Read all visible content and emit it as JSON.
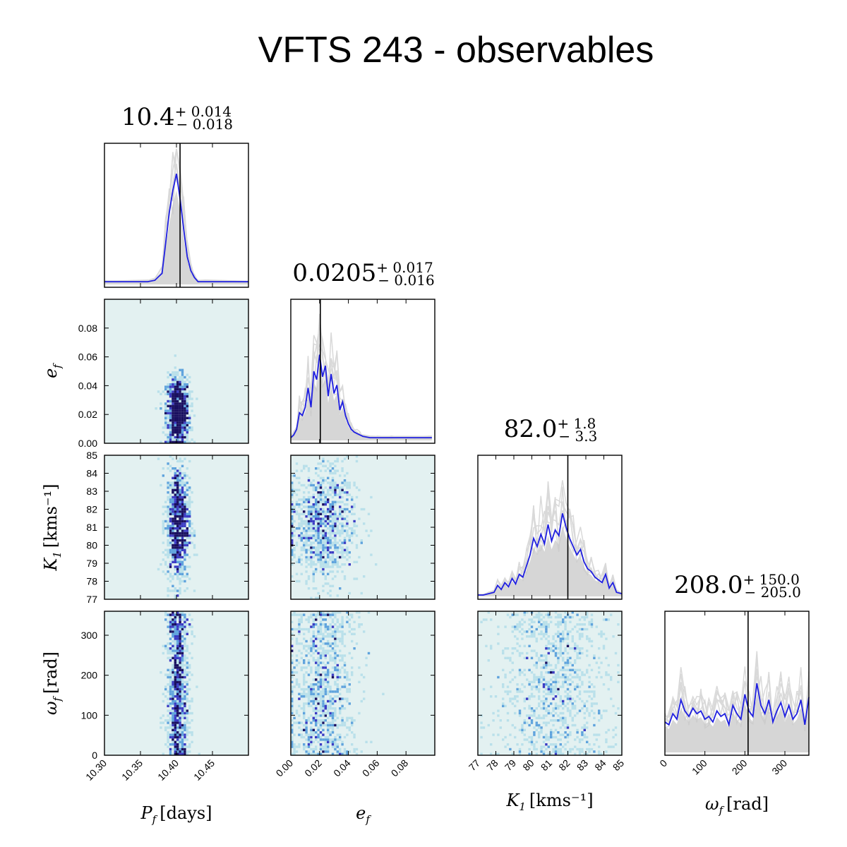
{
  "figure": {
    "title": "VFTS 243 - observables"
  },
  "colors": {
    "blue_line": "#1f1fe0",
    "grey_fill": "#c8c8c8",
    "grey_line": "#d9d9d9",
    "median_line": "#000000",
    "hist2d_bg": "#e3f1f1",
    "hist2d_low": "#b9e0ea",
    "hist2d_mid": "#5fa3dd",
    "hist2d_high": "#3b3bc4",
    "hist2d_peak": "#1a1060"
  },
  "chart_data": {
    "type": "corner",
    "parameters": [
      {
        "key": "P",
        "label_sym": "P",
        "label_sub": "f",
        "label_unit": "[days]",
        "range": [
          10.3,
          10.5
        ],
        "ticks": [
          10.3,
          10.35,
          10.4,
          10.45
        ],
        "tick_labels": [
          "10.30",
          "10.35",
          "10.40",
          "10.45"
        ],
        "median": 10.405,
        "stat": {
          "value": "10.4",
          "plus": "+ 0.014",
          "minus": "− 0.018"
        }
      },
      {
        "key": "e",
        "label_sym": "e",
        "label_sub": "f",
        "label_unit": "",
        "range": [
          0.0,
          0.1
        ],
        "ticks": [
          0.0,
          0.02,
          0.04,
          0.06,
          0.08
        ],
        "tick_labels": [
          "0.00",
          "0.02",
          "0.04",
          "0.06",
          "0.08"
        ],
        "median": 0.0205,
        "stat": {
          "value": "0.0205",
          "plus": "+ 0.017",
          "minus": "− 0.016"
        }
      },
      {
        "key": "K",
        "label_sym": "K",
        "label_sub": "1",
        "label_unit": "[kms⁻¹]",
        "range": [
          77,
          85
        ],
        "ticks": [
          77,
          78,
          79,
          80,
          81,
          82,
          83,
          84,
          85
        ],
        "tick_labels": [
          "77",
          "78",
          "79",
          "80",
          "81",
          "82",
          "83",
          "84",
          "85"
        ],
        "median": 82.0,
        "stat": {
          "value": "82.0",
          "plus": "+ 1.8",
          "minus": "− 3.3"
        }
      },
      {
        "key": "w",
        "label_sym": "ω",
        "label_sub": "f",
        "label_unit": "[rad]",
        "range": [
          0,
          360
        ],
        "ticks": [
          0,
          100,
          200,
          300
        ],
        "tick_labels": [
          "0",
          "100",
          "200",
          "300"
        ],
        "median": 208.0,
        "stat": {
          "value": "208.0",
          "plus": "+ 150.0",
          "minus": "− 205.0"
        }
      }
    ],
    "marginals": {
      "P": {
        "x": [
          10.3,
          10.36,
          10.37,
          10.38,
          10.385,
          10.39,
          10.395,
          10.4,
          10.405,
          10.41,
          10.415,
          10.42,
          10.425,
          10.43,
          10.44,
          10.5
        ],
        "y": [
          0.02,
          0.02,
          0.03,
          0.08,
          0.3,
          0.52,
          0.68,
          0.8,
          0.62,
          0.4,
          0.2,
          0.1,
          0.05,
          0.02,
          0.02,
          0.02
        ]
      },
      "e": {
        "x": [
          0.0,
          0.002,
          0.004,
          0.006,
          0.008,
          0.01,
          0.012,
          0.014,
          0.016,
          0.018,
          0.02,
          0.022,
          0.024,
          0.026,
          0.028,
          0.03,
          0.032,
          0.034,
          0.036,
          0.038,
          0.04,
          0.042,
          0.044,
          0.046,
          0.048,
          0.05,
          0.055,
          0.06,
          0.07,
          0.08,
          0.098
        ],
        "y": [
          0.02,
          0.04,
          0.08,
          0.2,
          0.18,
          0.24,
          0.38,
          0.24,
          0.5,
          0.44,
          0.62,
          0.46,
          0.54,
          0.32,
          0.48,
          0.34,
          0.4,
          0.22,
          0.28,
          0.18,
          0.12,
          0.08,
          0.06,
          0.05,
          0.04,
          0.03,
          0.02,
          0.02,
          0.02,
          0.02,
          0.02
        ]
      },
      "K": {
        "x": [
          77.0,
          77.3,
          77.6,
          77.9,
          78.1,
          78.3,
          78.5,
          78.7,
          78.9,
          79.1,
          79.3,
          79.5,
          79.7,
          79.9,
          80.1,
          80.3,
          80.5,
          80.7,
          80.9,
          81.1,
          81.3,
          81.5,
          81.7,
          81.9,
          82.1,
          82.3,
          82.5,
          82.7,
          82.9,
          83.1,
          83.3,
          83.5,
          83.7,
          83.9,
          84.1,
          84.3,
          84.5,
          84.7,
          85.0
        ],
        "y": [
          0.01,
          0.01,
          0.02,
          0.03,
          0.08,
          0.05,
          0.1,
          0.07,
          0.13,
          0.09,
          0.16,
          0.14,
          0.22,
          0.3,
          0.42,
          0.36,
          0.45,
          0.38,
          0.52,
          0.4,
          0.48,
          0.44,
          0.6,
          0.5,
          0.42,
          0.36,
          0.3,
          0.34,
          0.25,
          0.2,
          0.18,
          0.14,
          0.12,
          0.1,
          0.16,
          0.06,
          0.1,
          0.03,
          0.02
        ]
      },
      "w": {
        "x": [
          0,
          10,
          20,
          30,
          40,
          50,
          60,
          70,
          80,
          90,
          100,
          110,
          120,
          130,
          140,
          150,
          160,
          170,
          180,
          190,
          200,
          210,
          220,
          230,
          240,
          250,
          260,
          270,
          280,
          290,
          300,
          310,
          320,
          330,
          340,
          350,
          360
        ],
        "y": [
          0.22,
          0.2,
          0.28,
          0.24,
          0.38,
          0.3,
          0.26,
          0.32,
          0.28,
          0.3,
          0.24,
          0.26,
          0.22,
          0.3,
          0.26,
          0.28,
          0.2,
          0.34,
          0.28,
          0.24,
          0.42,
          0.3,
          0.26,
          0.5,
          0.34,
          0.28,
          0.38,
          0.22,
          0.3,
          0.36,
          0.26,
          0.34,
          0.24,
          0.28,
          0.38,
          0.2,
          0.4
        ]
      }
    }
  }
}
